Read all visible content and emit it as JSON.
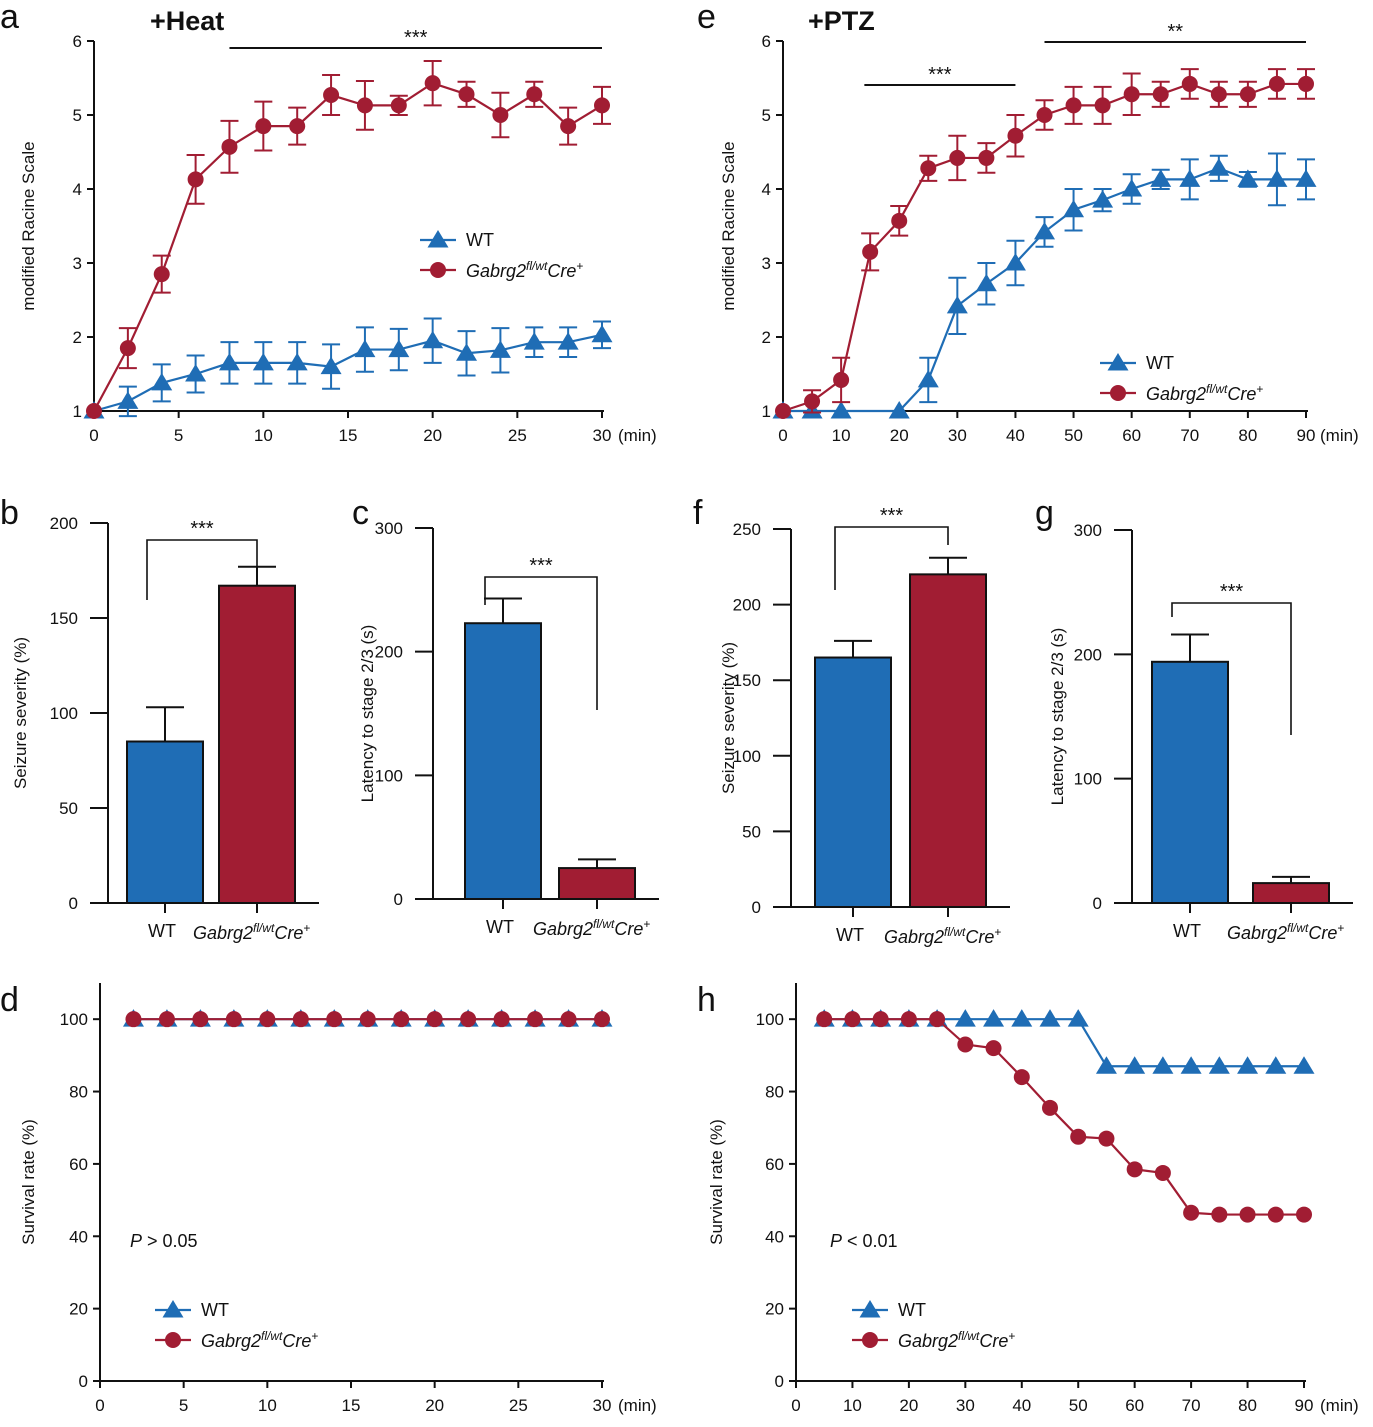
{
  "colors": {
    "wt": "#1f6db5",
    "mut": "#a11d33",
    "axis": "#111111"
  },
  "legend": {
    "wt": "WT",
    "mut_main": "Gabrg2",
    "mut_sup": "fl/wt",
    "mut_tail": "Cre",
    "mut_plus": "+"
  },
  "chart_data": [
    {
      "id": "a",
      "type": "line",
      "panel_letter": "a",
      "title": "+Heat",
      "ylabel": "modified Racine Scale",
      "x_unit": "(min)",
      "xlim": [
        0,
        30
      ],
      "ylim": [
        1,
        6
      ],
      "x_ticks": [
        0,
        5,
        10,
        15,
        20,
        25,
        30
      ],
      "y_ticks": [
        1,
        2,
        3,
        4,
        5,
        6
      ],
      "series": [
        {
          "name": "WT",
          "marker": "triangle",
          "x": [
            0,
            2,
            4,
            6,
            8,
            10,
            12,
            14,
            16,
            18,
            20,
            22,
            24,
            26,
            28,
            30
          ],
          "y": [
            1.0,
            1.13,
            1.38,
            1.5,
            1.65,
            1.65,
            1.65,
            1.6,
            1.83,
            1.83,
            1.95,
            1.78,
            1.82,
            1.93,
            1.93,
            2.03
          ],
          "err": [
            0,
            0.2,
            0.25,
            0.25,
            0.28,
            0.28,
            0.28,
            0.3,
            0.3,
            0.28,
            0.3,
            0.3,
            0.3,
            0.2,
            0.2,
            0.18
          ]
        },
        {
          "name": "Gabrg2fl/wtCre+",
          "marker": "circle",
          "x": [
            0,
            2,
            4,
            6,
            8,
            10,
            12,
            14,
            16,
            18,
            20,
            22,
            24,
            26,
            28,
            30
          ],
          "y": [
            1.0,
            1.85,
            2.85,
            4.13,
            4.57,
            4.85,
            4.85,
            5.27,
            5.13,
            5.13,
            5.43,
            5.28,
            5.0,
            5.28,
            4.85,
            5.13
          ],
          "err": [
            0,
            0.27,
            0.25,
            0.33,
            0.35,
            0.33,
            0.25,
            0.27,
            0.33,
            0.13,
            0.3,
            0.17,
            0.3,
            0.17,
            0.25,
            0.25
          ]
        }
      ],
      "sig_bars": [
        {
          "x1": 8,
          "x2": 30,
          "label": "***"
        }
      ]
    },
    {
      "id": "e",
      "type": "line",
      "panel_letter": "e",
      "title": "+PTZ",
      "ylabel": "modified Racine Scale",
      "x_unit": "(min)",
      "xlim": [
        0,
        90
      ],
      "ylim": [
        1,
        6
      ],
      "x_ticks": [
        0,
        10,
        20,
        30,
        40,
        50,
        60,
        70,
        80,
        90
      ],
      "y_ticks": [
        1,
        2,
        3,
        4,
        5,
        6
      ],
      "series": [
        {
          "name": "WT",
          "marker": "triangle",
          "x": [
            0,
            5,
            10,
            20,
            25,
            30,
            35,
            40,
            45,
            50,
            55,
            60,
            65,
            70,
            75,
            80,
            85,
            90
          ],
          "y": [
            1.0,
            1.0,
            1.0,
            1.0,
            1.42,
            2.42,
            2.72,
            3.0,
            3.42,
            3.72,
            3.85,
            4.0,
            4.13,
            4.13,
            4.28,
            4.13,
            4.13,
            4.13
          ],
          "err": [
            0,
            0,
            0,
            0,
            0.3,
            0.38,
            0.28,
            0.3,
            0.2,
            0.28,
            0.15,
            0.2,
            0.13,
            0.27,
            0.17,
            0.1,
            0.35,
            0.27
          ]
        },
        {
          "name": "Gabrg2fl/wtCre+",
          "marker": "circle",
          "x": [
            0,
            5,
            10,
            15,
            20,
            25,
            30,
            35,
            40,
            45,
            50,
            55,
            60,
            65,
            70,
            75,
            80,
            85,
            90
          ],
          "y": [
            1.0,
            1.13,
            1.42,
            3.15,
            3.57,
            4.28,
            4.42,
            4.42,
            4.72,
            5.0,
            5.13,
            5.13,
            5.28,
            5.28,
            5.42,
            5.28,
            5.28,
            5.42,
            5.42
          ],
          "err": [
            0,
            0.15,
            0.3,
            0.25,
            0.2,
            0.17,
            0.3,
            0.2,
            0.28,
            0.2,
            0.25,
            0.25,
            0.28,
            0.17,
            0.2,
            0.17,
            0.17,
            0.2,
            0.2
          ]
        }
      ],
      "sig_bars": [
        {
          "x1": 14,
          "x2": 40,
          "label": "***"
        },
        {
          "x1": 45,
          "x2": 90,
          "label": "**"
        }
      ]
    },
    {
      "id": "b",
      "type": "bar",
      "panel_letter": "b",
      "ylabel": "Seizure severity (%)",
      "ylim": [
        0,
        200
      ],
      "y_ticks": [
        0,
        50,
        100,
        150,
        200
      ],
      "categories": [
        "WT",
        "Gabrg2fl/wtCre+"
      ],
      "values": [
        85,
        167
      ],
      "err": [
        18,
        10
      ],
      "sig": "***"
    },
    {
      "id": "c",
      "type": "bar",
      "panel_letter": "c",
      "ylabel": "Latency to stage 2/3 (s)",
      "ylim": [
        0,
        300
      ],
      "y_ticks": [
        0,
        100,
        200,
        300
      ],
      "categories": [
        "WT",
        "Gabrg2fl/wtCre+"
      ],
      "values": [
        223,
        25
      ],
      "err": [
        20,
        7
      ],
      "sig": "***"
    },
    {
      "id": "f",
      "type": "bar",
      "panel_letter": "f",
      "ylabel": "Seizure severity (%)",
      "ylim": [
        0,
        250
      ],
      "y_ticks": [
        0,
        50,
        100,
        150,
        200,
        250
      ],
      "categories": [
        "WT",
        "Gabrg2fl/wtCre+"
      ],
      "values": [
        165,
        220
      ],
      "err": [
        11,
        11
      ],
      "sig": "***"
    },
    {
      "id": "g",
      "type": "bar",
      "panel_letter": "g",
      "ylabel": "Latency to stage 2/3 (s)",
      "ylim": [
        0,
        300
      ],
      "y_ticks": [
        0,
        100,
        200,
        300
      ],
      "categories": [
        "WT",
        "Gabrg2fl/wtCre+"
      ],
      "values": [
        194,
        16
      ],
      "err": [
        22,
        5
      ],
      "sig": "***"
    },
    {
      "id": "d",
      "type": "line",
      "panel_letter": "d",
      "ylabel": "Survival rate (%)",
      "x_unit": "(min)",
      "xlim": [
        0,
        30
      ],
      "ylim": [
        0,
        110
      ],
      "x_ticks": [
        0,
        5,
        10,
        15,
        20,
        25,
        30
      ],
      "y_ticks": [
        0,
        20,
        40,
        60,
        80,
        100
      ],
      "p_label": "P",
      "p_value": " > 0.05",
      "series": [
        {
          "name": "WT",
          "marker": "triangle",
          "x": [
            2,
            4,
            6,
            8,
            10,
            12,
            14,
            16,
            18,
            20,
            22,
            24,
            26,
            28,
            30
          ],
          "y": [
            100,
            100,
            100,
            100,
            100,
            100,
            100,
            100,
            100,
            100,
            100,
            100,
            100,
            100,
            100
          ]
        },
        {
          "name": "Gabrg2fl/wtCre+",
          "marker": "circle",
          "x": [
            2,
            4,
            6,
            8,
            10,
            12,
            14,
            16,
            18,
            20,
            22,
            24,
            26,
            28,
            30
          ],
          "y": [
            100,
            100,
            100,
            100,
            100,
            100,
            100,
            100,
            100,
            100,
            100,
            100,
            100,
            100,
            100
          ]
        }
      ]
    },
    {
      "id": "h",
      "type": "line",
      "panel_letter": "h",
      "ylabel": "Survival rate (%)",
      "x_unit": "(min)",
      "xlim": [
        0,
        90
      ],
      "ylim": [
        0,
        110
      ],
      "x_ticks": [
        0,
        10,
        20,
        30,
        40,
        50,
        60,
        70,
        80,
        90
      ],
      "y_ticks": [
        0,
        20,
        40,
        60,
        80,
        100
      ],
      "p_label": "P",
      "p_value": " < 0.01",
      "series": [
        {
          "name": "WT",
          "marker": "triangle",
          "step": true,
          "x": [
            5,
            10,
            15,
            20,
            25,
            30,
            35,
            40,
            45,
            50,
            55,
            60,
            65,
            70,
            75,
            80,
            85,
            90
          ],
          "y": [
            100,
            100,
            100,
            100,
            100,
            100,
            100,
            100,
            100,
            100,
            87,
            87,
            87,
            87,
            87,
            87,
            87,
            87
          ]
        },
        {
          "name": "Gabrg2fl/wtCre+",
          "marker": "circle",
          "x": [
            5,
            10,
            15,
            20,
            25,
            30,
            35,
            40,
            45,
            50,
            55,
            60,
            65,
            70,
            75,
            80,
            85,
            90
          ],
          "y": [
            100,
            100,
            100,
            100,
            100,
            93,
            92,
            84,
            75.5,
            67.5,
            67,
            58.5,
            57.5,
            46.5,
            46,
            46,
            46,
            46
          ]
        }
      ]
    }
  ]
}
